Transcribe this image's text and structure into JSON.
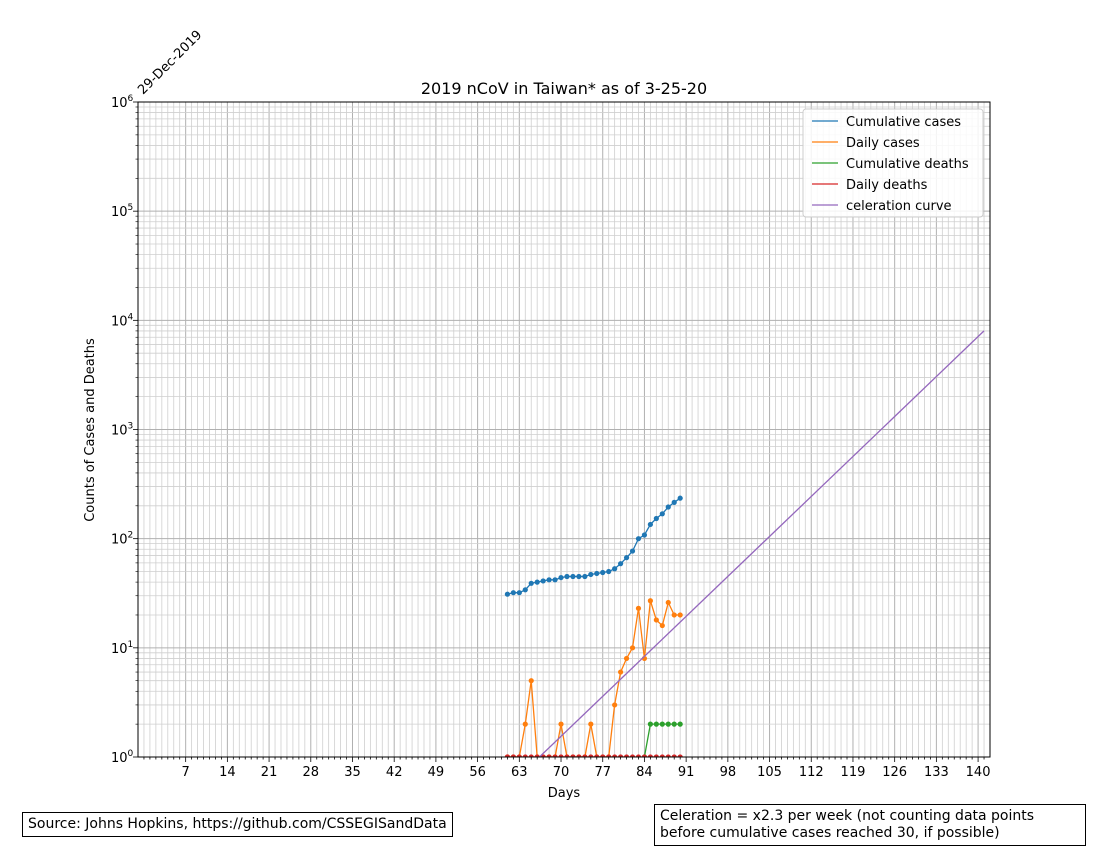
{
  "chart_data": {
    "type": "line",
    "title": "2019 nCoV in Taiwan* as of 3-25-20",
    "xlabel": "Days",
    "ylabel": "Counts of Cases and Deaths",
    "start_date_label": "29-Dec-2019",
    "xlim": [
      -1,
      142
    ],
    "ylim": [
      1,
      1000000
    ],
    "yscale": "log",
    "grid": true,
    "legend_position": "upper right",
    "x_ticks": [
      7,
      14,
      21,
      28,
      35,
      42,
      49,
      56,
      63,
      70,
      77,
      84,
      91,
      98,
      105,
      112,
      119,
      126,
      133,
      140
    ],
    "y_ticks": [
      {
        "base": "10",
        "exp": "0",
        "value": 1
      },
      {
        "base": "10",
        "exp": "1",
        "value": 10
      },
      {
        "base": "10",
        "exp": "2",
        "value": 100
      },
      {
        "base": "10",
        "exp": "3",
        "value": 1000
      },
      {
        "base": "10",
        "exp": "4",
        "value": 10000
      },
      {
        "base": "10",
        "exp": "5",
        "value": 100000
      },
      {
        "base": "10",
        "exp": "6",
        "value": 1000000
      }
    ],
    "series": [
      {
        "name": "Cumulative cases",
        "color": "#1f77b4",
        "markers": true,
        "x": [
          61,
          62,
          63,
          64,
          65,
          66,
          67,
          68,
          69,
          70,
          71,
          72,
          73,
          74,
          75,
          76,
          77,
          78,
          79,
          80,
          81,
          82,
          83,
          84,
          85,
          86,
          87,
          88,
          89,
          90
        ],
        "y": [
          31,
          32,
          32,
          34,
          39,
          40,
          41,
          42,
          42,
          44,
          45,
          45,
          45,
          45,
          47,
          48,
          49,
          50,
          53,
          59,
          67,
          77,
          100,
          108,
          135,
          153,
          169,
          195,
          215,
          235
        ]
      },
      {
        "name": "Daily cases",
        "color": "#ff7f0e",
        "markers": true,
        "x": [
          61,
          62,
          63,
          64,
          65,
          66,
          67,
          68,
          69,
          70,
          71,
          72,
          73,
          74,
          75,
          76,
          77,
          78,
          79,
          80,
          81,
          82,
          83,
          84,
          85,
          86,
          87,
          88,
          89,
          90
        ],
        "y": [
          1,
          1,
          1,
          2,
          5,
          1,
          1,
          1,
          1,
          2,
          1,
          1,
          1,
          1,
          2,
          1,
          1,
          1,
          3,
          6,
          8,
          10,
          23,
          8,
          27,
          18,
          16,
          26,
          20,
          20
        ]
      },
      {
        "name": "Cumulative deaths",
        "color": "#2ca02c",
        "markers": true,
        "x": [
          84,
          85,
          86,
          87,
          88,
          89,
          90
        ],
        "y": [
          1,
          2,
          2,
          2,
          2,
          2,
          2
        ]
      },
      {
        "name": "Daily deaths",
        "color": "#d62728",
        "markers": true,
        "x": [
          61,
          62,
          63,
          64,
          65,
          66,
          67,
          68,
          69,
          70,
          71,
          72,
          73,
          74,
          75,
          76,
          77,
          78,
          79,
          80,
          81,
          82,
          83,
          84,
          85,
          86,
          87,
          88,
          89,
          90
        ],
        "y": [
          1,
          1,
          1,
          1,
          1,
          1,
          1,
          1,
          1,
          1,
          1,
          1,
          1,
          1,
          1,
          1,
          1,
          1,
          1,
          1,
          1,
          1,
          1,
          1,
          1,
          1,
          1,
          1,
          1,
          1
        ]
      },
      {
        "name": "celeration curve",
        "color": "#9467bd",
        "markers": false,
        "x": [
          65.5,
          141
        ],
        "y": [
          0.9,
          8000
        ]
      }
    ]
  },
  "footnotes": {
    "source": "Source: Johns Hopkins, https://github.com/CSSEGISandData",
    "celeration": "Celeration = x2.3 per week (not counting data points before cumulative cases reached 30, if possible)"
  }
}
